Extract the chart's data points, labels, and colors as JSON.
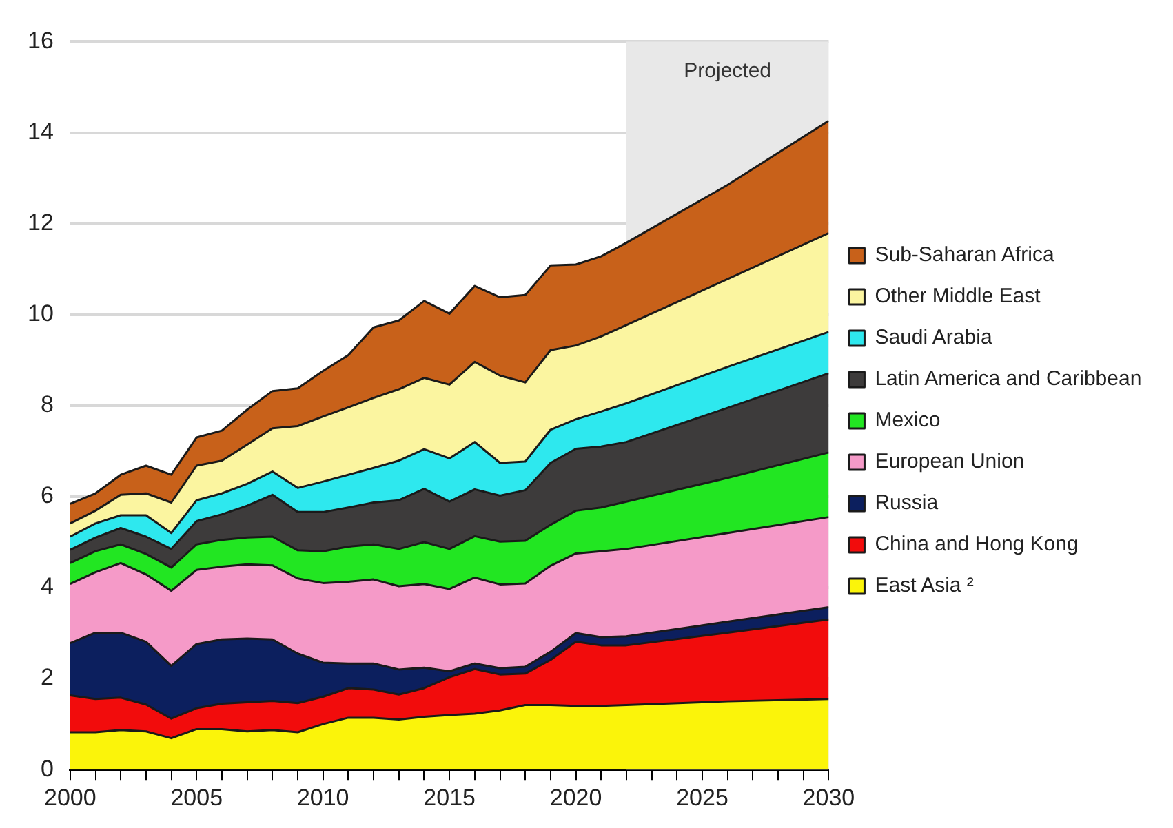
{
  "chart_data": {
    "type": "area",
    "stacked": true,
    "x": [
      2000,
      2001,
      2002,
      2003,
      2004,
      2005,
      2006,
      2007,
      2008,
      2009,
      2010,
      2011,
      2012,
      2013,
      2014,
      2015,
      2016,
      2017,
      2018,
      2019,
      2020,
      2021,
      2022,
      2026,
      2030
    ],
    "series": [
      {
        "name": "East Asia ²",
        "color": "#fbf40a",
        "values": [
          0.82,
          0.82,
          0.87,
          0.84,
          0.69,
          0.89,
          0.89,
          0.84,
          0.87,
          0.82,
          1.0,
          1.14,
          1.14,
          1.1,
          1.16,
          1.2,
          1.23,
          1.3,
          1.42,
          1.42,
          1.4,
          1.4,
          1.42,
          1.5,
          1.55
        ]
      },
      {
        "name": "China and Hong Kong",
        "color": "#f20c0c",
        "values": [
          0.81,
          0.73,
          0.71,
          0.59,
          0.43,
          0.46,
          0.56,
          0.64,
          0.64,
          0.64,
          0.6,
          0.65,
          0.62,
          0.55,
          0.63,
          0.83,
          0.98,
          0.79,
          0.69,
          0.99,
          1.41,
          1.33,
          1.31,
          1.51,
          1.75
        ]
      },
      {
        "name": "Russia",
        "color": "#0c1f5e",
        "values": [
          1.15,
          1.46,
          1.43,
          1.38,
          1.16,
          1.41,
          1.41,
          1.4,
          1.35,
          1.09,
          0.75,
          0.54,
          0.57,
          0.55,
          0.45,
          0.13,
          0.12,
          0.14,
          0.15,
          0.18,
          0.19,
          0.18,
          0.2,
          0.24,
          0.27
        ]
      },
      {
        "name": "European Union",
        "color": "#f59ac8",
        "values": [
          1.3,
          1.33,
          1.53,
          1.48,
          1.65,
          1.63,
          1.6,
          1.63,
          1.63,
          1.65,
          1.75,
          1.8,
          1.85,
          1.83,
          1.84,
          1.81,
          1.89,
          1.84,
          1.83,
          1.89,
          1.75,
          1.89,
          1.92,
          1.95,
          1.98
        ]
      },
      {
        "name": "Mexico",
        "color": "#22e622",
        "values": [
          0.46,
          0.46,
          0.41,
          0.45,
          0.51,
          0.56,
          0.59,
          0.59,
          0.63,
          0.62,
          0.7,
          0.77,
          0.77,
          0.82,
          0.92,
          0.88,
          0.91,
          0.94,
          0.94,
          0.9,
          0.94,
          0.96,
          1.04,
          1.21,
          1.42
        ]
      },
      {
        "name": "Latin America and Caribbean",
        "color": "#3d3b3b",
        "values": [
          0.29,
          0.3,
          0.36,
          0.38,
          0.41,
          0.51,
          0.56,
          0.7,
          0.92,
          0.84,
          0.86,
          0.86,
          0.92,
          1.07,
          1.17,
          1.04,
          1.03,
          1.01,
          1.11,
          1.36,
          1.36,
          1.34,
          1.31,
          1.54,
          1.74
        ]
      },
      {
        "name": "Saudi Arabia",
        "color": "#2ee8ee",
        "values": [
          0.29,
          0.31,
          0.28,
          0.47,
          0.35,
          0.46,
          0.46,
          0.48,
          0.51,
          0.53,
          0.67,
          0.72,
          0.76,
          0.87,
          0.87,
          0.95,
          1.04,
          0.72,
          0.63,
          0.73,
          0.65,
          0.77,
          0.85,
          0.9,
          0.91
        ]
      },
      {
        "name": "Other Middle East",
        "color": "#fbf5a0",
        "values": [
          0.29,
          0.28,
          0.45,
          0.48,
          0.67,
          0.76,
          0.72,
          0.86,
          0.95,
          1.36,
          1.43,
          1.48,
          1.54,
          1.57,
          1.57,
          1.62,
          1.76,
          1.92,
          1.74,
          1.75,
          1.62,
          1.65,
          1.72,
          1.93,
          2.17
        ]
      },
      {
        "name": "Sub-Saharan Africa",
        "color": "#c8611a",
        "values": [
          0.43,
          0.38,
          0.44,
          0.61,
          0.61,
          0.62,
          0.66,
          0.77,
          0.82,
          0.83,
          1.0,
          1.15,
          1.55,
          1.51,
          1.69,
          1.56,
          1.67,
          1.72,
          1.92,
          1.86,
          1.78,
          1.76,
          1.81,
          2.07,
          2.47
        ]
      }
    ],
    "xlim": [
      2000,
      2030
    ],
    "xticks": [
      2000,
      {
        "value": 2001,
        "label": null
      },
      {
        "value": 2002,
        "label": null
      },
      {
        "value": 2003,
        "label": null
      },
      {
        "value": 2004,
        "label": null
      },
      2005,
      {
        "value": 2006,
        "label": null
      },
      {
        "value": 2007,
        "label": null
      },
      {
        "value": 2008,
        "label": null
      },
      {
        "value": 2009,
        "label": null
      },
      2010,
      {
        "value": 2011,
        "label": null
      },
      {
        "value": 2012,
        "label": null
      },
      {
        "value": 2013,
        "label": null
      },
      {
        "value": 2014,
        "label": null
      },
      2015,
      {
        "value": 2016,
        "label": null
      },
      {
        "value": 2017,
        "label": null
      },
      {
        "value": 2018,
        "label": null
      },
      {
        "value": 2019,
        "label": null
      },
      2020,
      {
        "value": 2021,
        "label": null
      },
      {
        "value": 2022,
        "label": null
      },
      {
        "value": 2023,
        "label": null
      },
      {
        "value": 2024,
        "label": null
      },
      2025,
      {
        "value": 2026,
        "label": null
      },
      {
        "value": 2027,
        "label": null
      },
      {
        "value": 2028,
        "label": null
      },
      {
        "value": 2029,
        "label": null
      },
      2030
    ],
    "ylim": [
      0,
      16
    ],
    "yticks": [
      0,
      2,
      4,
      6,
      8,
      10,
      12,
      14,
      16
    ],
    "bands": [
      {
        "axis": "x",
        "from": 2022,
        "to": 2030,
        "label": "Projected",
        "color": "#e8e8e8"
      }
    ],
    "grid": "y",
    "legend": "right"
  }
}
